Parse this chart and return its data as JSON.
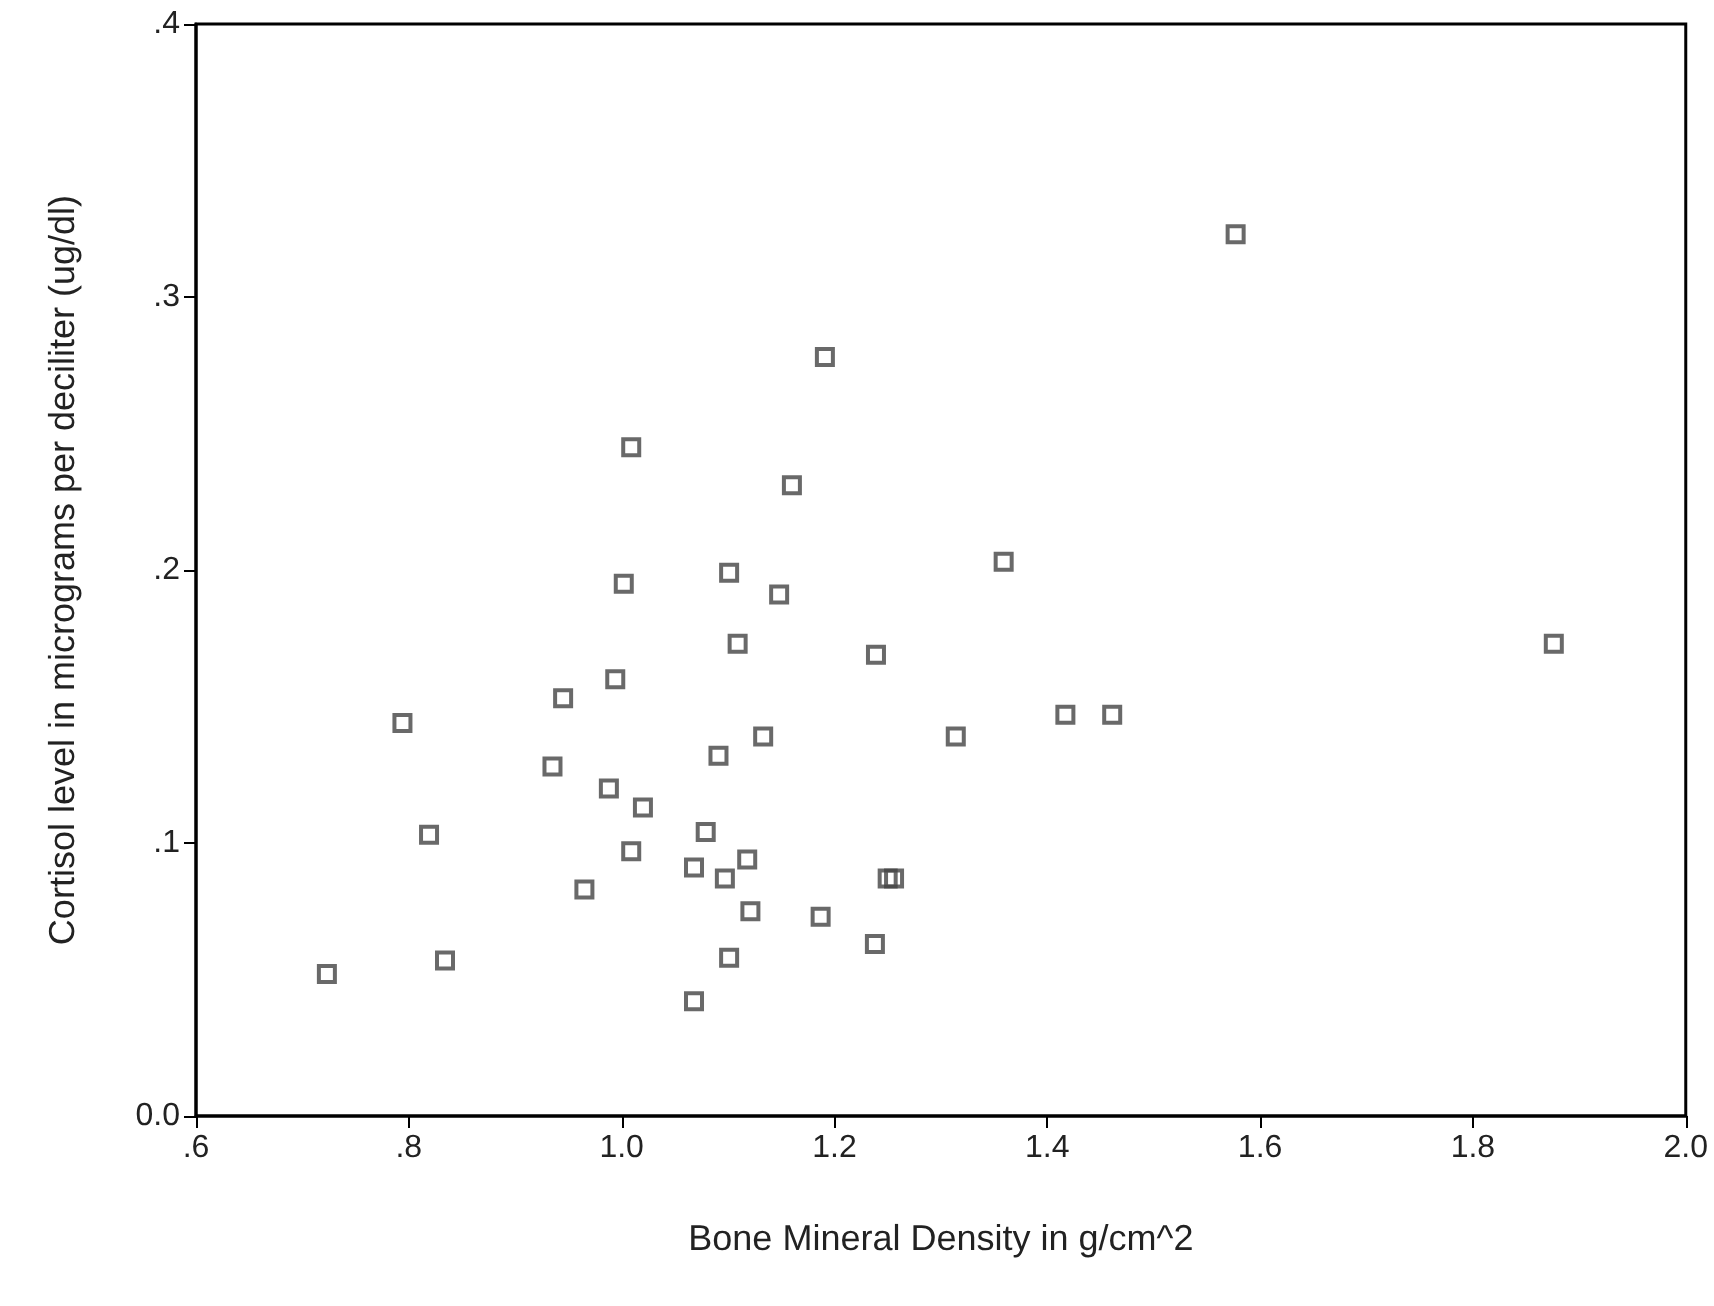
{
  "chart_data": {
    "type": "scatter",
    "xlabel": "Bone Mineral Density in g/cm^2",
    "ylabel": "Cortisol level in micrograms per deciliter (ug/dl)",
    "x": [
      1.191,
      1.009,
      1.16,
      1.359,
      1.101,
      1.002,
      1.148,
      1.109,
      1.239,
      0.994,
      0.945,
      0.794,
      1.133,
      1.314,
      1.091,
      0.935,
      0.988,
      1.02,
      1.079,
      0.819,
      1.009,
      1.118,
      1.068,
      1.097,
      1.25,
      1.256,
      0.965,
      1.121,
      1.187,
      1.238,
      0.834,
      1.101,
      0.723,
      1.068,
      1.577,
      1.876,
      1.417,
      1.461
    ],
    "series": [
      {
        "color": "#444444",
        "values": [
          0.278,
          0.245,
          0.231,
          0.203,
          0.199,
          0.195,
          0.191,
          0.173,
          0.169,
          0.16,
          0.153,
          0.144,
          0.139,
          0.139,
          0.132,
          0.128,
          0.12,
          0.113,
          0.104,
          0.103,
          0.097,
          0.094,
          0.091,
          0.087,
          0.087,
          0.087,
          0.083,
          0.075,
          0.073,
          0.063,
          0.057,
          0.058,
          0.052,
          0.042,
          0.323,
          0.173,
          0.147,
          0.147
        ]
      }
    ],
    "xlim": [
      0.6,
      2.0
    ],
    "ylim": [
      0,
      0.4
    ],
    "xticks": [
      {
        "value": 0.6,
        "label": ".6"
      },
      {
        "value": 0.8,
        "label": ".8"
      },
      {
        "value": 1,
        "label": "1.0"
      },
      {
        "value": 1.2,
        "label": "1.2"
      },
      {
        "value": 1.4,
        "label": "1.4"
      },
      {
        "value": 1.6,
        "label": "1.6"
      },
      {
        "value": 1.8,
        "label": "1.8"
      },
      {
        "value": 2,
        "label": "2.0"
      }
    ],
    "yticks": [
      {
        "value": 0,
        "label": "0.0"
      },
      {
        "value": 0.1,
        "label": ".1"
      },
      {
        "value": 0.2,
        "label": ".2"
      },
      {
        "value": 0.3,
        "label": ".3"
      },
      {
        "value": 0.4,
        "label": ".4"
      }
    ],
    "grid": false,
    "marker": "square"
  }
}
